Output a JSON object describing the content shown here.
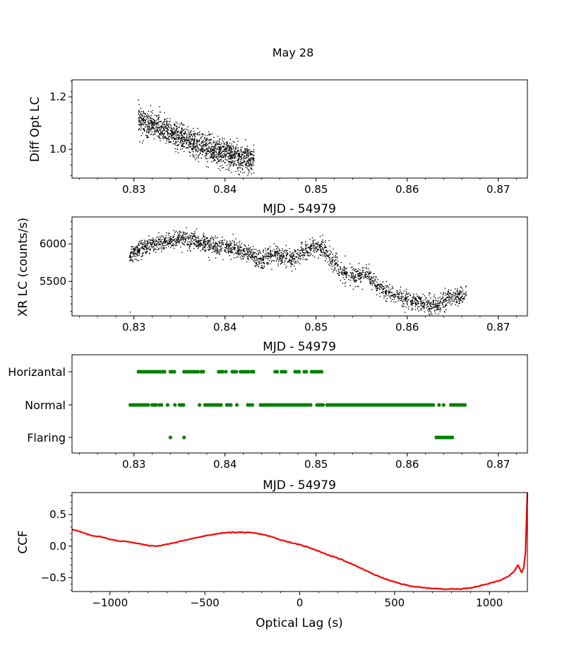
{
  "figure_title": "May 28",
  "colors": {
    "scatter": "#000000",
    "state": "#008000",
    "ccf": "#ff0000",
    "axis": "#000000"
  },
  "chart_data": [
    {
      "id": "opt",
      "type": "scatter",
      "title": "",
      "xlabel": "MJD - 54979",
      "ylabel": "Diff Opt LC",
      "xlim": [
        0.8232,
        0.8732
      ],
      "ylim": [
        0.89,
        1.265
      ],
      "x_ticks": [
        0.83,
        0.84,
        0.85,
        0.86,
        0.87
      ],
      "x_tick_labels": [
        "0.83",
        "0.84",
        "0.85",
        "0.86",
        "0.87"
      ],
      "y_ticks": [
        1.0,
        1.2
      ],
      "y_tick_labels": [
        "1.0",
        "1.2"
      ],
      "x_range": [
        0.8305,
        0.8432
      ],
      "trend": [
        [
          0.8305,
          1.12
        ],
        [
          0.8315,
          1.09
        ],
        [
          0.8325,
          1.09
        ],
        [
          0.834,
          1.06
        ],
        [
          0.836,
          1.03
        ],
        [
          0.838,
          1.005
        ],
        [
          0.84,
          0.985
        ],
        [
          0.842,
          0.965
        ],
        [
          0.8432,
          0.962
        ]
      ],
      "scatter_sigma": 0.025
    },
    {
      "id": "xr",
      "type": "scatter",
      "title": "",
      "xlabel": "MJD - 54979",
      "ylabel": "XR LC (counts/s)",
      "xlim": [
        0.8232,
        0.8732
      ],
      "ylim": [
        5040,
        6360
      ],
      "x_ticks": [
        0.83,
        0.84,
        0.85,
        0.86,
        0.87
      ],
      "x_tick_labels": [
        "0.83",
        "0.84",
        "0.85",
        "0.86",
        "0.87"
      ],
      "y_ticks": [
        5500,
        6000
      ],
      "y_tick_labels": [
        "5500",
        "6000"
      ],
      "x_range": [
        0.8295,
        0.8665
      ],
      "trend": [
        [
          0.8295,
          5850
        ],
        [
          0.831,
          5950
        ],
        [
          0.833,
          6020
        ],
        [
          0.8355,
          6080
        ],
        [
          0.837,
          6030
        ],
        [
          0.839,
          5960
        ],
        [
          0.841,
          5930
        ],
        [
          0.8425,
          5880
        ],
        [
          0.844,
          5780
        ],
        [
          0.8455,
          5860
        ],
        [
          0.8475,
          5800
        ],
        [
          0.849,
          5920
        ],
        [
          0.8505,
          5960
        ],
        [
          0.8515,
          5820
        ],
        [
          0.853,
          5620
        ],
        [
          0.8545,
          5560
        ],
        [
          0.8555,
          5620
        ],
        [
          0.857,
          5400
        ],
        [
          0.859,
          5300
        ],
        [
          0.861,
          5220
        ],
        [
          0.8625,
          5190
        ],
        [
          0.8635,
          5170
        ],
        [
          0.8645,
          5290
        ],
        [
          0.8665,
          5310
        ]
      ],
      "scatter_sigma": 60,
      "outlier": [
        0.8296,
        5090
      ]
    },
    {
      "id": "state",
      "type": "scatter",
      "title": "",
      "xlabel": "MJD - 54979",
      "ylabel": "",
      "xlim": [
        0.8232,
        0.8732
      ],
      "categories": [
        "Horizantal",
        "Normal",
        "Flaring"
      ],
      "x_ticks": [
        0.83,
        0.84,
        0.85,
        0.86,
        0.87
      ],
      "x_tick_labels": [
        "0.83",
        "0.84",
        "0.85",
        "0.86",
        "0.87"
      ],
      "segments": {
        "Horizantal": [
          [
            0.8305,
            0.8335
          ],
          [
            0.834,
            0.8345
          ],
          [
            0.8355,
            0.8372
          ],
          [
            0.8374,
            0.8378
          ],
          [
            0.8393,
            0.8398
          ],
          [
            0.8401,
            0.8402
          ],
          [
            0.8408,
            0.8413
          ],
          [
            0.8417,
            0.8427
          ],
          [
            0.8429,
            0.8433
          ],
          [
            0.8455,
            0.8458
          ],
          [
            0.8462,
            0.8467
          ],
          [
            0.8477,
            0.8482
          ],
          [
            0.8487,
            0.849
          ],
          [
            0.8495,
            0.8506
          ]
        ],
        "Normal": [
          [
            0.8296,
            0.8316
          ],
          [
            0.832,
            0.8325
          ],
          [
            0.8328,
            0.8332
          ],
          [
            0.8337,
            0.8338
          ],
          [
            0.8345,
            0.8347
          ],
          [
            0.835,
            0.8355
          ],
          [
            0.8372,
            0.8374
          ],
          [
            0.8378,
            0.8387
          ],
          [
            0.8389,
            0.8397
          ],
          [
            0.8402,
            0.8407
          ],
          [
            0.8413,
            0.8415
          ],
          [
            0.8425,
            0.8428
          ],
          [
            0.843,
            0.8432
          ],
          [
            0.8439,
            0.8495
          ],
          [
            0.8501,
            0.8509
          ],
          [
            0.8512,
            0.863
          ],
          [
            0.8635,
            0.8636
          ],
          [
            0.864,
            0.8642
          ],
          [
            0.8648,
            0.8665
          ]
        ],
        "Flaring": [
          [
            0.834,
            0.834
          ],
          [
            0.8355,
            0.8355
          ],
          [
            0.8632,
            0.865
          ]
        ]
      }
    },
    {
      "id": "ccf",
      "type": "line",
      "title": "",
      "xlabel": "Optical Lag (s)",
      "ylabel": "CCF",
      "xlim": [
        -1200,
        1200
      ],
      "ylim": [
        -0.72,
        0.85
      ],
      "x_ticks": [
        -1000,
        -500,
        0,
        500,
        1000
      ],
      "x_tick_labels": [
        "−1000",
        "−500",
        "0",
        "500",
        "1000"
      ],
      "y_ticks": [
        -0.5,
        0.0,
        0.5
      ],
      "y_tick_labels": [
        "−0.5",
        "0.0",
        "0.5"
      ],
      "x": [
        -1200,
        -1150,
        -1100,
        -1050,
        -1000,
        -950,
        -900,
        -850,
        -800,
        -750,
        -700,
        -650,
        -600,
        -550,
        -500,
        -450,
        -400,
        -350,
        -300,
        -250,
        -200,
        -150,
        -100,
        -50,
        0,
        50,
        100,
        150,
        200,
        250,
        300,
        350,
        400,
        450,
        500,
        550,
        600,
        650,
        700,
        750,
        800,
        850,
        900,
        950,
        1000,
        1050,
        1100,
        1130,
        1150,
        1170,
        1180,
        1190,
        1200
      ],
      "values": [
        0.27,
        0.22,
        0.17,
        0.15,
        0.11,
        0.08,
        0.07,
        0.04,
        0.01,
        0.0,
        0.03,
        0.06,
        0.1,
        0.13,
        0.16,
        0.19,
        0.21,
        0.22,
        0.22,
        0.21,
        0.19,
        0.15,
        0.1,
        0.06,
        0.02,
        -0.02,
        -0.08,
        -0.14,
        -0.19,
        -0.25,
        -0.32,
        -0.39,
        -0.46,
        -0.52,
        -0.57,
        -0.61,
        -0.64,
        -0.66,
        -0.67,
        -0.68,
        -0.68,
        -0.68,
        -0.66,
        -0.63,
        -0.59,
        -0.55,
        -0.48,
        -0.4,
        -0.3,
        -0.42,
        -0.35,
        -0.1,
        0.85
      ]
    }
  ]
}
